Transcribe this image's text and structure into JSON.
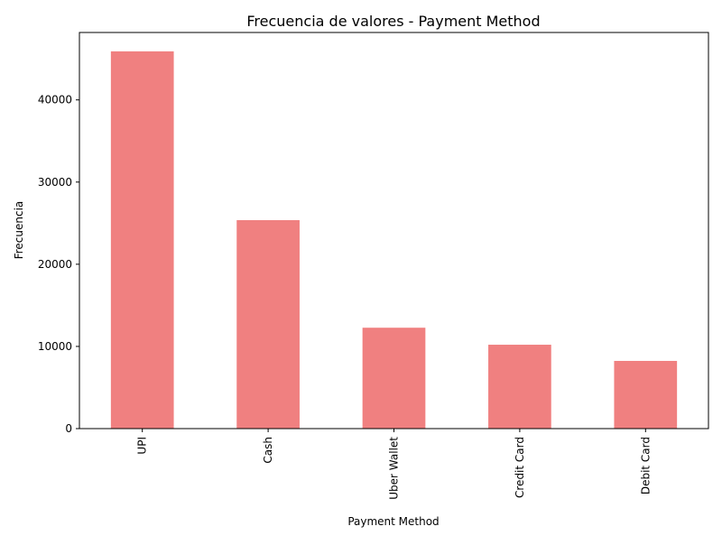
{
  "chart_data": {
    "type": "bar",
    "title": "Frecuencia de valores - Payment Method",
    "xlabel": "Payment Method",
    "ylabel": "Frecuencia",
    "categories": [
      "UPI",
      "Cash",
      "Uber Wallet",
      "Credit Card",
      "Debit Card"
    ],
    "values": [
      45909,
      25367,
      12276,
      10209,
      8239
    ],
    "ylim": [
      0,
      48204
    ],
    "yticks": [
      0,
      10000,
      20000,
      30000,
      40000
    ],
    "bar_color": "#f08080",
    "grid": false,
    "legend": "none"
  }
}
